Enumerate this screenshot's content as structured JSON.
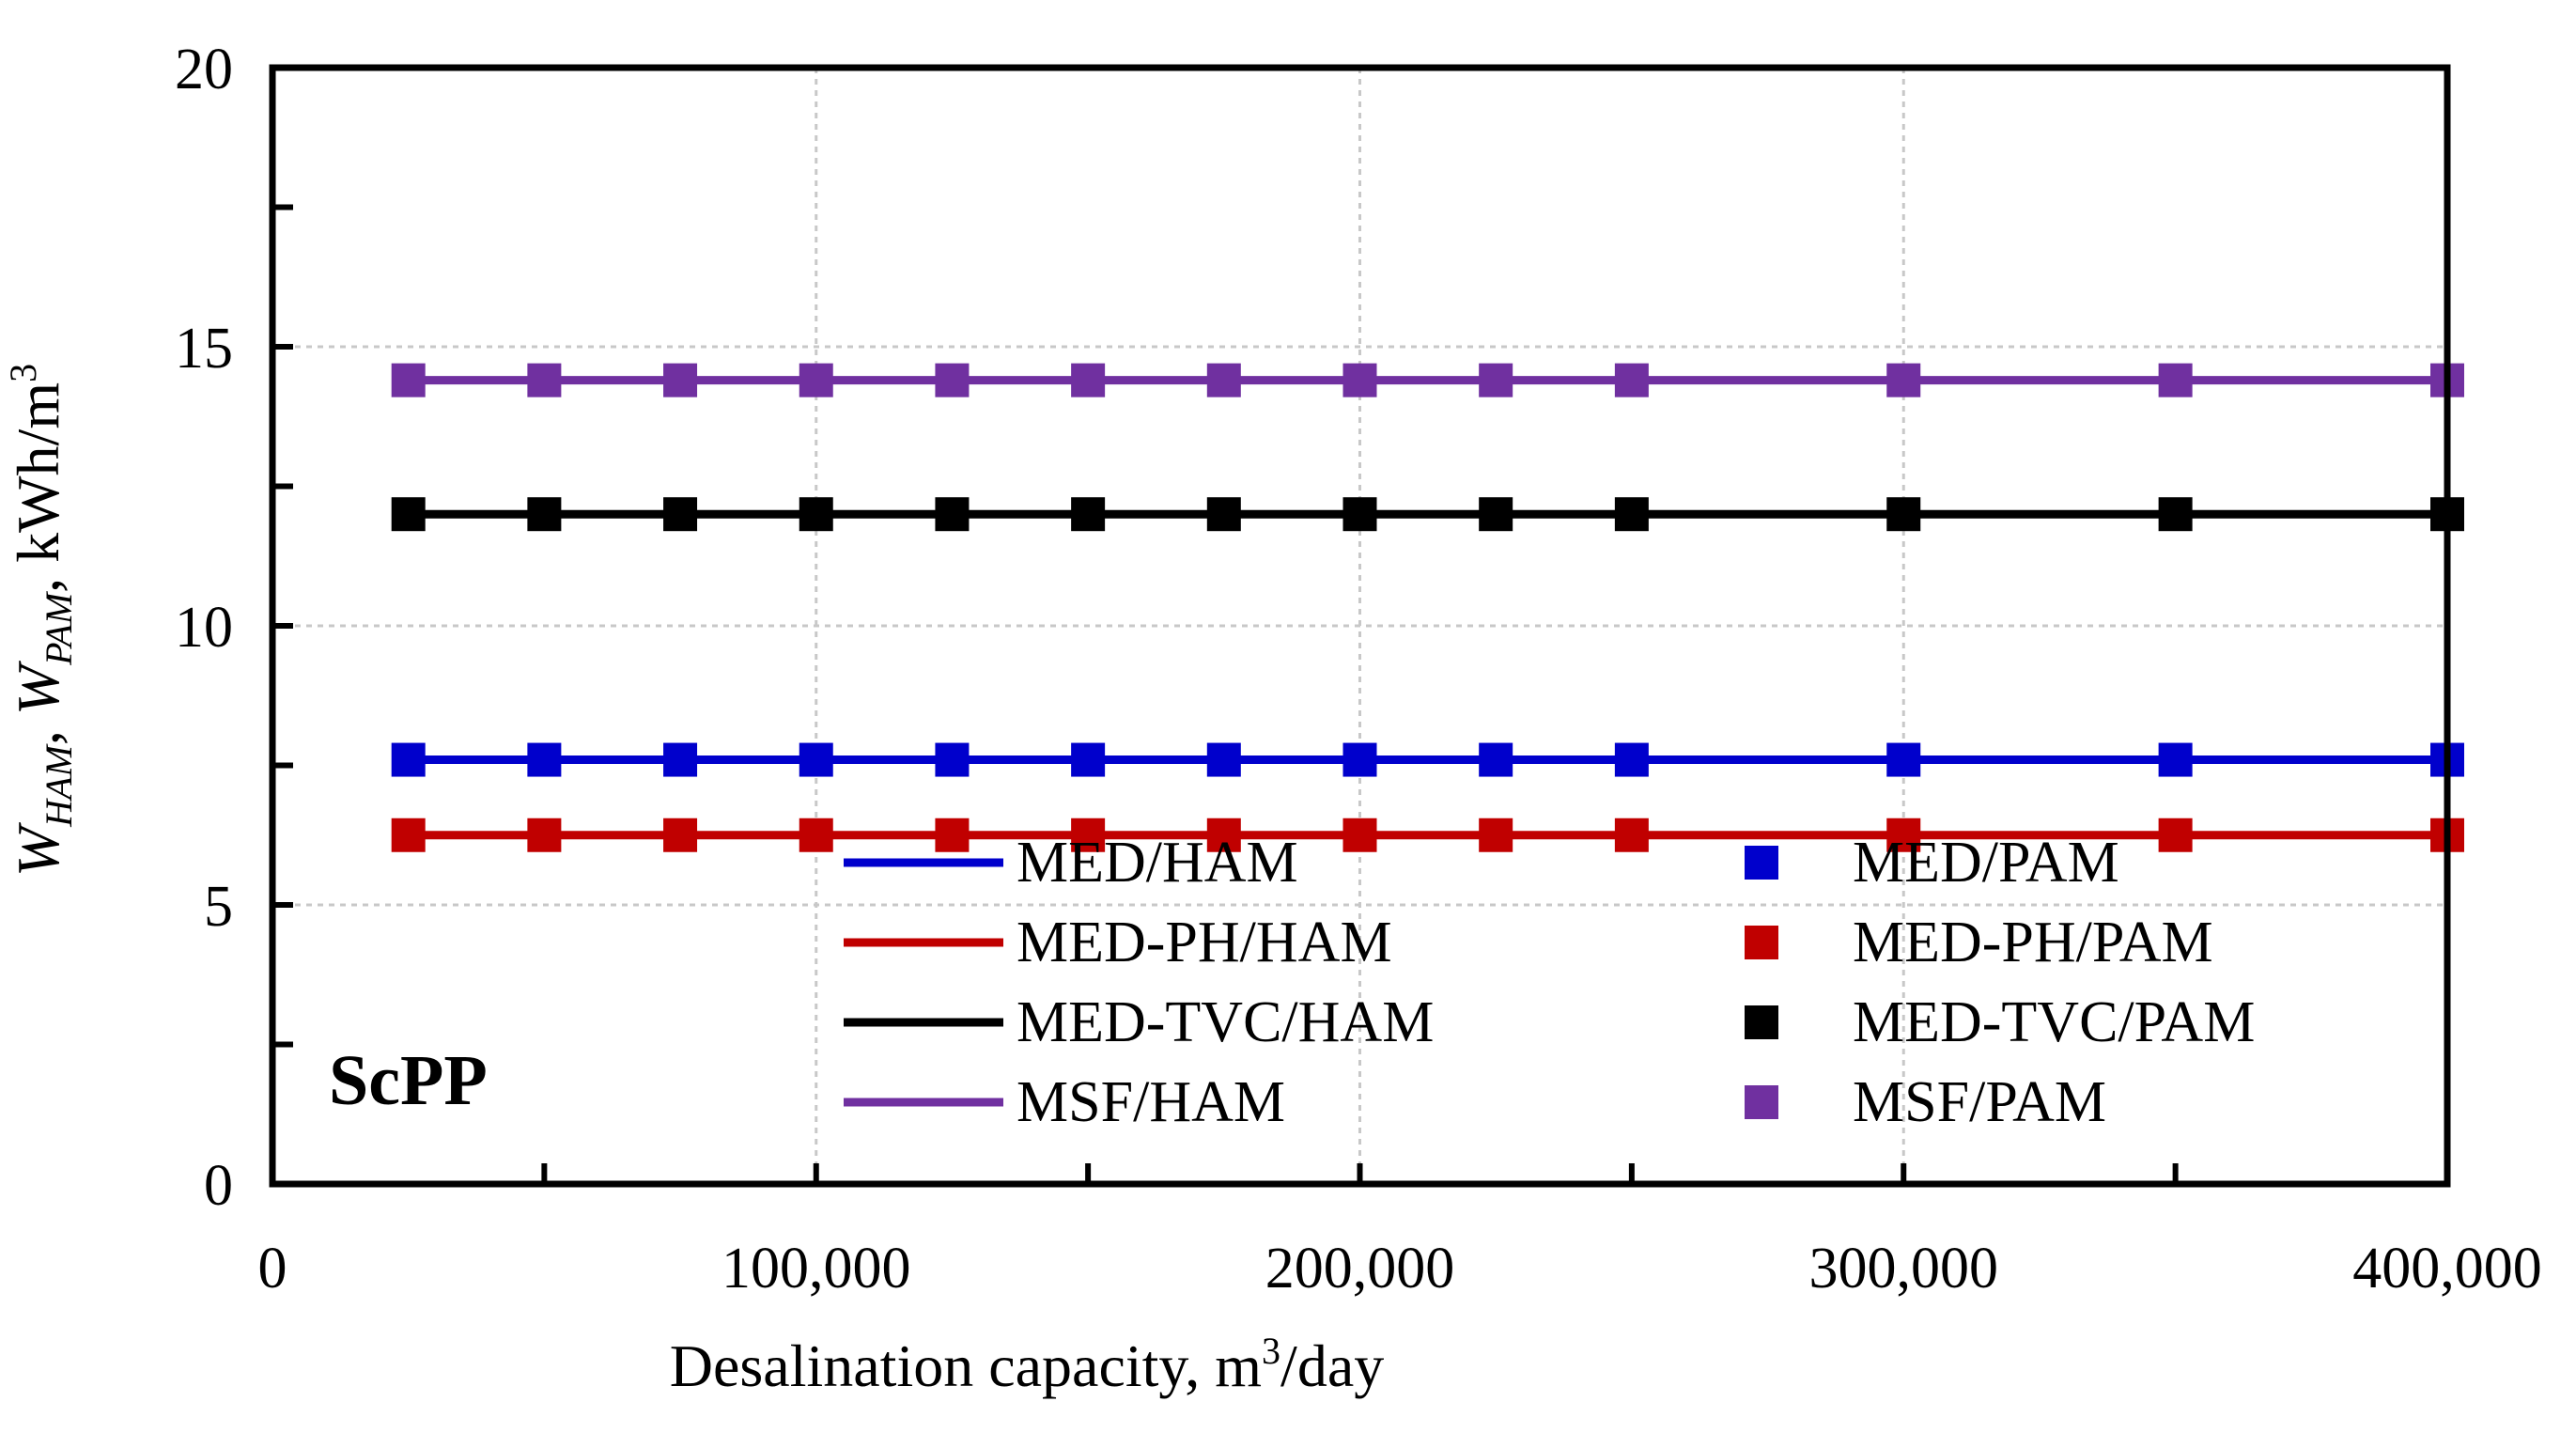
{
  "chart_data": {
    "type": "line",
    "title": "",
    "annotation": "ScPP",
    "xlabel": {
      "prefix": "Desalination capacity, m",
      "sup": "3",
      "suffix": "/day"
    },
    "ylabel": {
      "parts": [
        {
          "t": "W",
          "style": "italic"
        },
        {
          "t": "HAM",
          "style": "sub"
        },
        {
          "t": ", ",
          "style": "normal"
        },
        {
          "t": "W",
          "style": "italic"
        },
        {
          "t": "PAM",
          "style": "sub"
        },
        {
          "t": ", kWh/m",
          "style": "normal"
        },
        {
          "t": "3",
          "style": "sup"
        }
      ]
    },
    "xlim": [
      0,
      400000
    ],
    "ylim": [
      0,
      20
    ],
    "x_ticks": [
      0,
      100000,
      200000,
      300000,
      400000
    ],
    "x_tick_labels": [
      "0",
      "100,000",
      "200,000",
      "300,000",
      "400,000"
    ],
    "x_minor_ticks": [
      50000,
      150000,
      250000,
      350000
    ],
    "y_ticks": [
      0,
      5,
      10,
      15,
      20
    ],
    "y_tick_labels": [
      "0",
      "5",
      "10",
      "15",
      "20"
    ],
    "y_minor_ticks": [
      2.5,
      7.5,
      12.5,
      17.5
    ],
    "grid": true,
    "legend_position": "bottom-center",
    "x": [
      25000,
      50000,
      75000,
      100000,
      125000,
      150000,
      175000,
      200000,
      225000,
      250000,
      300000,
      350000,
      400000
    ],
    "series": [
      {
        "name": "MED/HAM",
        "kind": "line",
        "color": "#0000cc",
        "values": [
          7.6,
          7.6,
          7.6,
          7.6,
          7.6,
          7.6,
          7.6,
          7.6,
          7.6,
          7.6,
          7.6,
          7.6,
          7.6
        ]
      },
      {
        "name": "MED-PH/HAM",
        "kind": "line",
        "color": "#c00000",
        "values": [
          6.25,
          6.25,
          6.25,
          6.25,
          6.25,
          6.25,
          6.25,
          6.25,
          6.25,
          6.25,
          6.25,
          6.25,
          6.25
        ]
      },
      {
        "name": "MED-TVC/HAM",
        "kind": "line",
        "color": "#000000",
        "values": [
          12,
          12,
          12,
          12,
          12,
          12,
          12,
          12,
          12,
          12,
          12,
          12,
          12
        ]
      },
      {
        "name": "MSF/HAM",
        "kind": "line",
        "color": "#7030a0",
        "values": [
          14.4,
          14.4,
          14.4,
          14.4,
          14.4,
          14.4,
          14.4,
          14.4,
          14.4,
          14.4,
          14.4,
          14.4,
          14.4
        ]
      },
      {
        "name": "MED/PAM",
        "kind": "marker",
        "color": "#0000cc",
        "values": [
          7.6,
          7.6,
          7.6,
          7.6,
          7.6,
          7.6,
          7.6,
          7.6,
          7.6,
          7.6,
          7.6,
          7.6,
          7.6
        ]
      },
      {
        "name": "MED-PH/PAM",
        "kind": "marker",
        "color": "#c00000",
        "values": [
          6.25,
          6.25,
          6.25,
          6.25,
          6.25,
          6.25,
          6.25,
          6.25,
          6.25,
          6.25,
          6.25,
          6.25,
          6.25
        ]
      },
      {
        "name": "MED-TVC/PAM",
        "kind": "marker",
        "color": "#000000",
        "values": [
          12,
          12,
          12,
          12,
          12,
          12,
          12,
          12,
          12,
          12,
          12,
          12,
          12
        ]
      },
      {
        "name": "MSF/PAM",
        "kind": "marker",
        "color": "#7030a0",
        "values": [
          14.4,
          14.4,
          14.4,
          14.4,
          14.4,
          14.4,
          14.4,
          14.4,
          14.4,
          14.4,
          14.4,
          14.4,
          14.4
        ]
      }
    ]
  }
}
